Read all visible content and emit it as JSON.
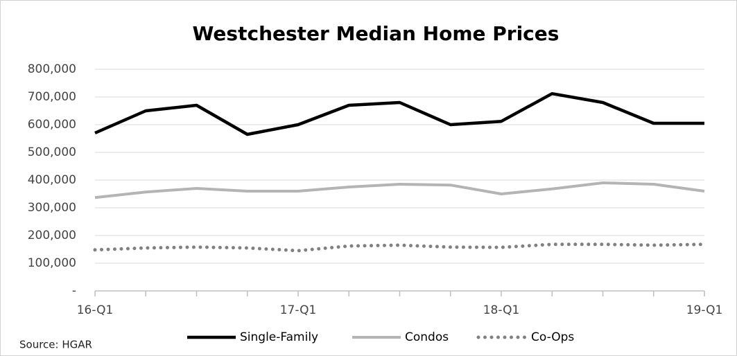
{
  "chart_data": {
    "type": "line",
    "title": "Westchester Median Home Prices",
    "categories": [
      "16-Q1",
      null,
      null,
      null,
      "17-Q1",
      null,
      null,
      null,
      "18-Q1",
      null,
      null,
      null,
      "19-Q1"
    ],
    "series": [
      {
        "name": "Single-Family",
        "color": "#000000",
        "style": "solid",
        "values": [
          570000,
          650000,
          670000,
          565000,
          600000,
          670000,
          680000,
          600000,
          612000,
          712000,
          680000,
          605000,
          605000
        ]
      },
      {
        "name": "Condos",
        "color": "#b4b4b4",
        "style": "solid",
        "values": [
          337000,
          357000,
          370000,
          360000,
          360000,
          375000,
          385000,
          382000,
          350000,
          368000,
          390000,
          385000,
          360000
        ]
      },
      {
        "name": "Co-Ops",
        "color": "#808080",
        "style": "dotted",
        "values": [
          148000,
          155000,
          158000,
          155000,
          145000,
          162000,
          165000,
          158000,
          157000,
          168000,
          168000,
          165000,
          168000
        ]
      }
    ],
    "ylim": [
      0,
      800000
    ],
    "yticks": [
      {
        "value": 0,
        "label": "-"
      },
      {
        "value": 100000,
        "label": "100,000"
      },
      {
        "value": 200000,
        "label": "200,000"
      },
      {
        "value": 300000,
        "label": "300,000"
      },
      {
        "value": 400000,
        "label": "400,000"
      },
      {
        "value": 500000,
        "label": "500,000"
      },
      {
        "value": 600000,
        "label": "600,000"
      },
      {
        "value": 700000,
        "label": "700,000"
      },
      {
        "value": 800000,
        "label": "800,000"
      }
    ],
    "grid": true,
    "legend": "bottom",
    "source": "Source: HGAR"
  }
}
